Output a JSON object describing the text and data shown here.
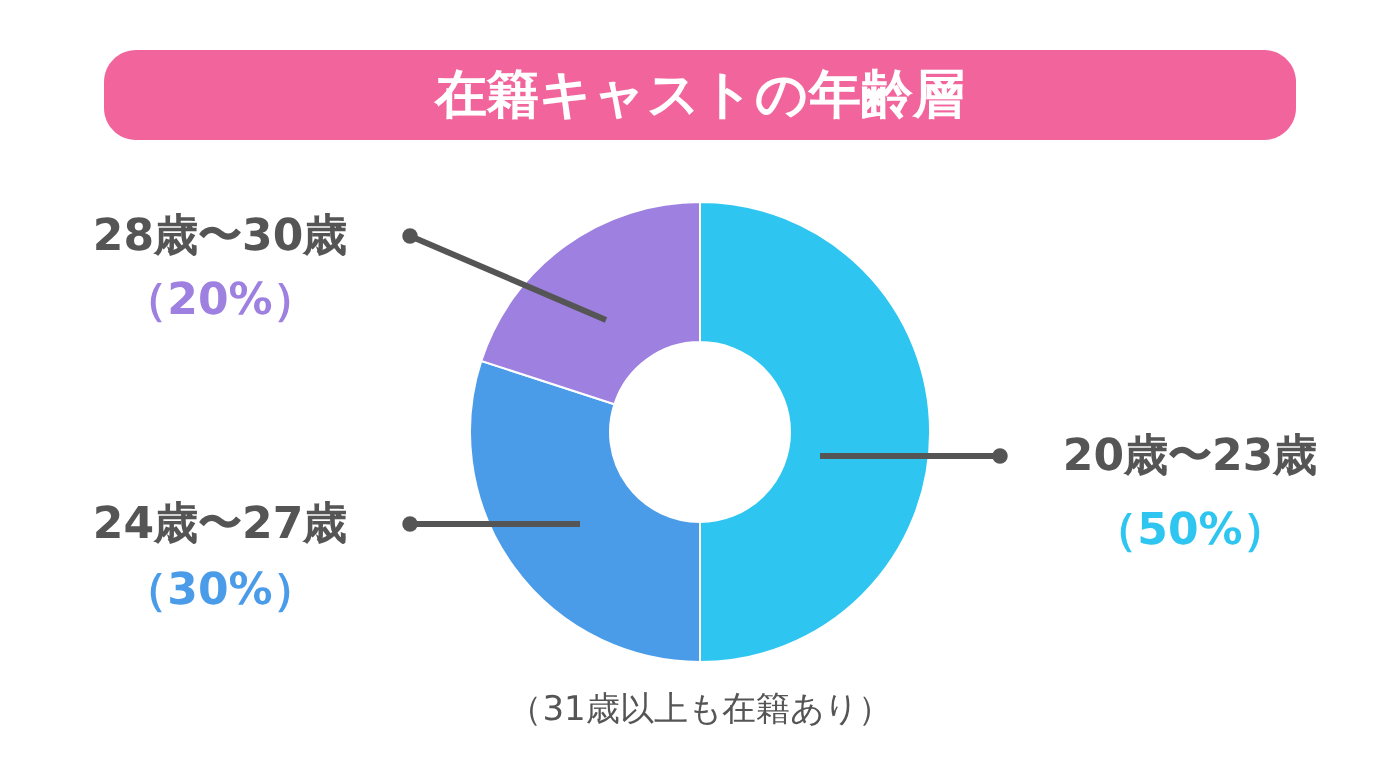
{
  "chart_data": {
    "type": "donut",
    "title": "在籍キャストの年齢層",
    "categories": [
      "20歳〜23歳",
      "24歳〜27歳",
      "28歳〜30歳"
    ],
    "values": [
      50,
      30,
      20
    ],
    "colors": [
      "#2ec6f0",
      "#4a9ce9",
      "#9d80e0"
    ],
    "value_labels": [
      "（50%）",
      "（30%）",
      "（20%）"
    ],
    "annotations": [
      "（31歳以上も在籍あり）"
    ]
  }
}
